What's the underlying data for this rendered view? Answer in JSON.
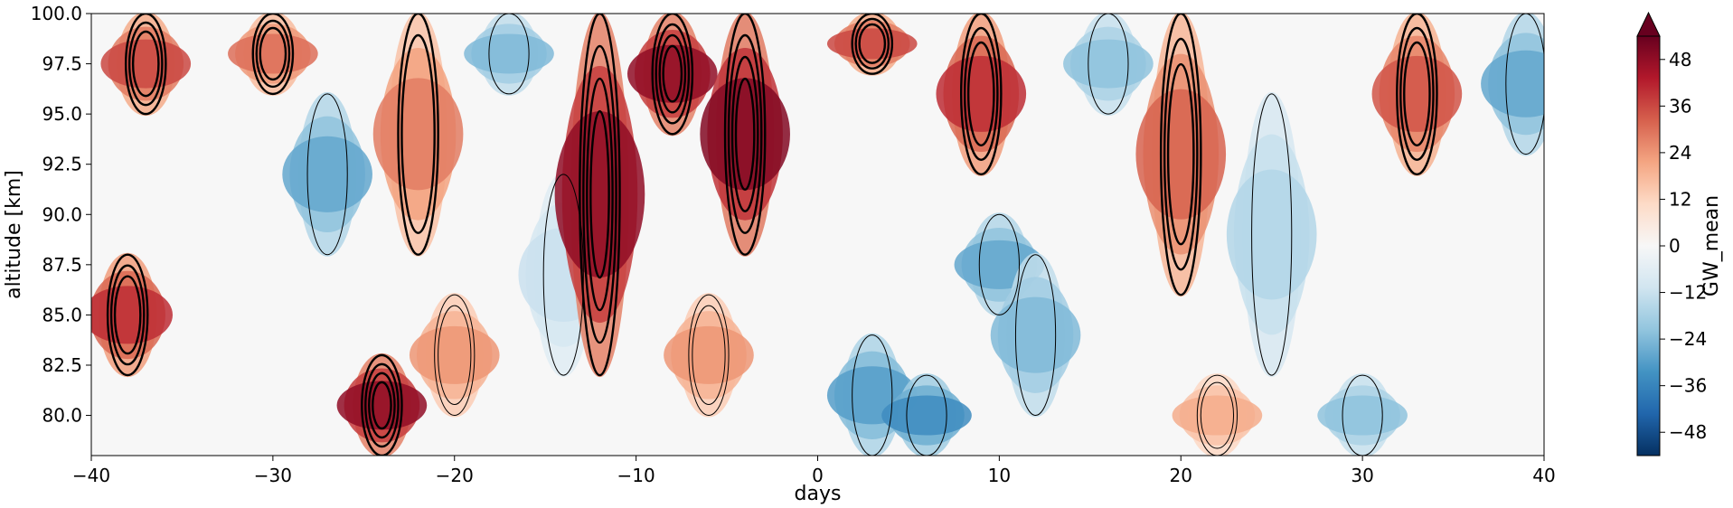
{
  "chart_data": {
    "type": "heatmap",
    "xlabel": "days",
    "ylabel": "altitude [km]",
    "xlim": [
      -40,
      40
    ],
    "ylim": [
      78,
      100
    ],
    "x_ticks": [
      -40,
      -30,
      -20,
      -10,
      0,
      10,
      20,
      30,
      40
    ],
    "x_tick_labels": [
      "−40",
      "−30",
      "−20",
      "−10",
      "0",
      "10",
      "20",
      "30",
      "40"
    ],
    "y_ticks": [
      80.0,
      82.5,
      85.0,
      87.5,
      90.0,
      92.5,
      95.0,
      97.5,
      100.0
    ],
    "y_tick_labels": [
      "80.0",
      "82.5",
      "85.0",
      "87.5",
      "90.0",
      "92.5",
      "95.0",
      "97.5",
      "100.0"
    ],
    "colorbar": {
      "label": "GW_mean",
      "range": [
        -54,
        54
      ],
      "extend": "max",
      "colormap": "RdBu_r",
      "ticks": [
        -48,
        -36,
        -24,
        -12,
        0,
        12,
        24,
        36,
        48
      ],
      "tick_labels": [
        "−48",
        "−36",
        "−24",
        "−12",
        "0",
        "12",
        "24",
        "36",
        "48"
      ]
    },
    "contour_overlay": {
      "color": "#000000",
      "style": "black contour lines, heavier lines for larger values"
    },
    "features": [
      {
        "day": -38,
        "alt_min": 82,
        "alt_max": 88,
        "value": 40
      },
      {
        "day": -37,
        "alt_min": 95,
        "alt_max": 100,
        "value": 36
      },
      {
        "day": -30,
        "alt_min": 96,
        "alt_max": 100,
        "value": 30
      },
      {
        "day": -27,
        "alt_min": 88,
        "alt_max": 96,
        "value": -28
      },
      {
        "day": -24,
        "alt_min": 78,
        "alt_max": 83,
        "value": 48
      },
      {
        "day": -22,
        "alt_min": 88,
        "alt_max": 100,
        "value": 28
      },
      {
        "day": -20,
        "alt_min": 80,
        "alt_max": 86,
        "value": 24
      },
      {
        "day": -17,
        "alt_min": 96,
        "alt_max": 100,
        "value": -24
      },
      {
        "day": -14,
        "alt_min": 82,
        "alt_max": 92,
        "value": -12
      },
      {
        "day": -12,
        "alt_min": 82,
        "alt_max": 100,
        "value": 48
      },
      {
        "day": -8,
        "alt_min": 94,
        "alt_max": 100,
        "value": 48
      },
      {
        "day": -4,
        "alt_min": 88,
        "alt_max": 100,
        "value": 50
      },
      {
        "day": -6,
        "alt_min": 80,
        "alt_max": 86,
        "value": 24
      },
      {
        "day": 3,
        "alt_min": 97,
        "alt_max": 100,
        "value": 36
      },
      {
        "day": 3,
        "alt_min": 78,
        "alt_max": 84,
        "value": -30
      },
      {
        "day": 6,
        "alt_min": 78,
        "alt_max": 82,
        "value": -34
      },
      {
        "day": 9,
        "alt_min": 92,
        "alt_max": 100,
        "value": 40
      },
      {
        "day": 10,
        "alt_min": 85,
        "alt_max": 90,
        "value": -28
      },
      {
        "day": 12,
        "alt_min": 80,
        "alt_max": 88,
        "value": -24
      },
      {
        "day": 16,
        "alt_min": 95,
        "alt_max": 100,
        "value": -22
      },
      {
        "day": 20,
        "alt_min": 86,
        "alt_max": 100,
        "value": 32
      },
      {
        "day": 22,
        "alt_min": 78,
        "alt_max": 82,
        "value": 20
      },
      {
        "day": 25,
        "alt_min": 82,
        "alt_max": 96,
        "value": -16
      },
      {
        "day": 30,
        "alt_min": 78,
        "alt_max": 82,
        "value": -22
      },
      {
        "day": 33,
        "alt_min": 92,
        "alt_max": 100,
        "value": 34
      },
      {
        "day": 39,
        "alt_min": 93,
        "alt_max": 100,
        "value": -28
      }
    ]
  }
}
